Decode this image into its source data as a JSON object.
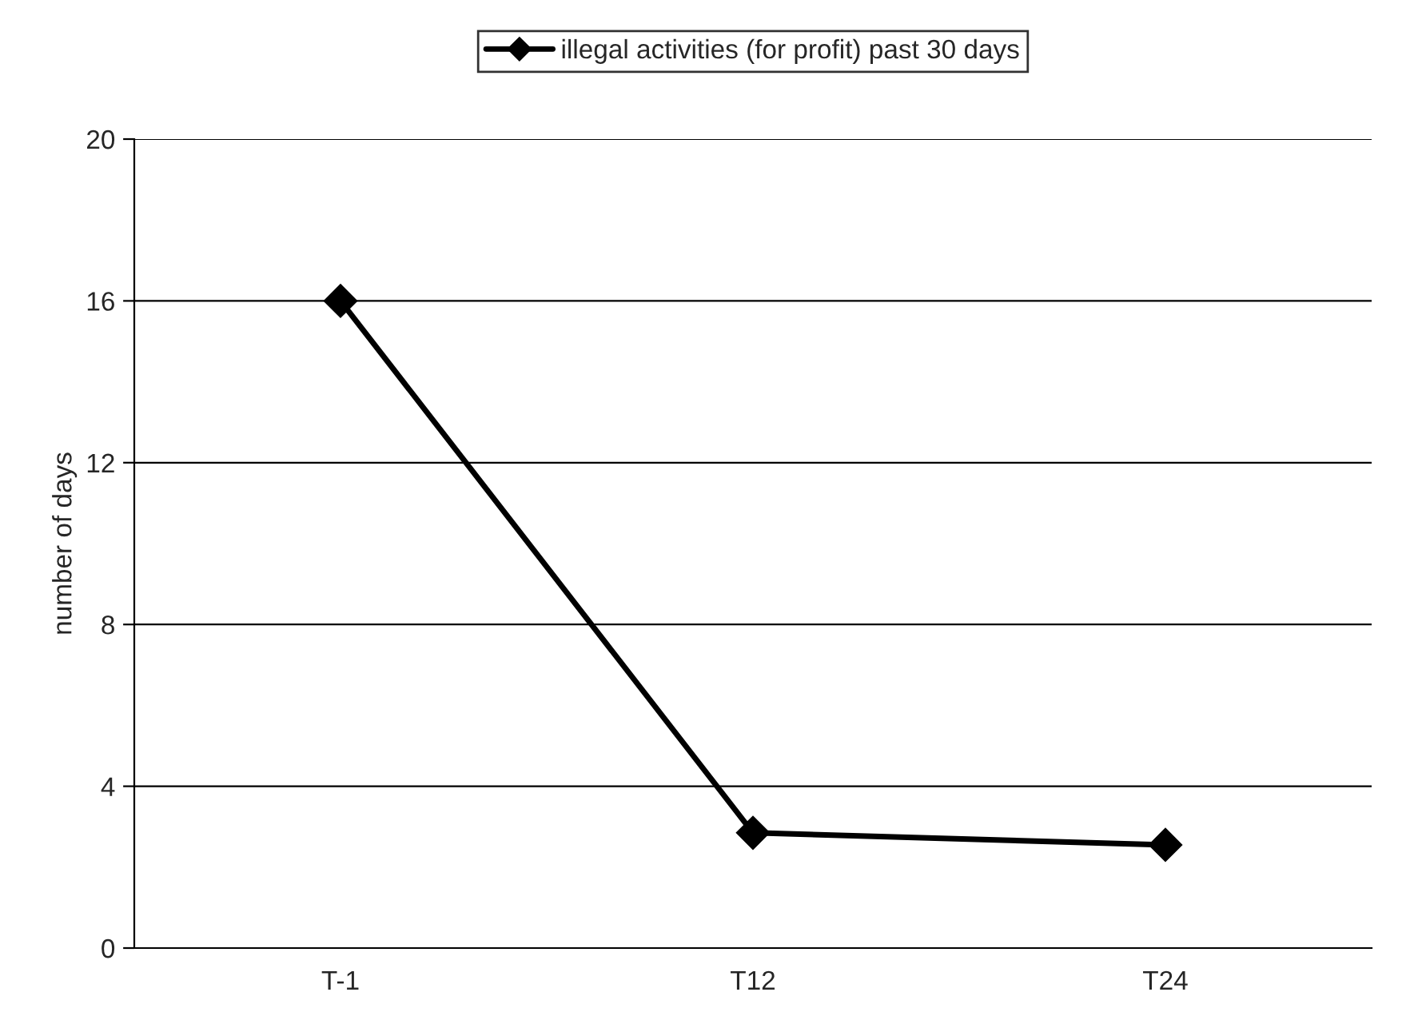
{
  "chart_data": {
    "type": "line",
    "ylabel": "number of days",
    "categories": [
      "T-1",
      "T12",
      "T24"
    ],
    "series": [
      {
        "name": "illegal activities (for profit) past 30 days",
        "color": "#000000",
        "values": [
          16.0,
          2.85,
          2.55
        ]
      }
    ],
    "ylim": [
      0,
      20
    ],
    "yticks": [
      0,
      4,
      8,
      12,
      16,
      20
    ],
    "grid": "y",
    "legend": "top",
    "marker": "diamond",
    "line_style": "solid"
  }
}
